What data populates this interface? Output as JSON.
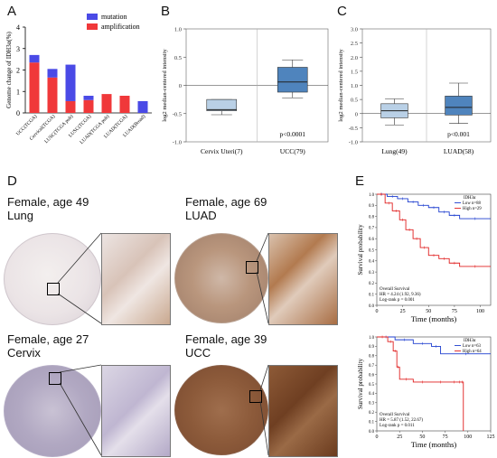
{
  "panels": {
    "a": "A",
    "b": "B",
    "c": "C",
    "d": "D",
    "e": "E"
  },
  "colors": {
    "mutation": "#4a4ae6",
    "amplification": "#f0383a",
    "box_light": "#b9d0e6",
    "box_dark": "#4f84bd",
    "low": "#1f3fcf",
    "high": "#e02020"
  },
  "chart_data": [
    {
      "type": "bar",
      "panel": "A",
      "ylabel": "Genome change of IDH3α(%)",
      "ylim": [
        0,
        4
      ],
      "yticks": [
        "0",
        "1",
        "2",
        "3",
        "4"
      ],
      "categories": [
        "UCC(TCGA)",
        "Cervical(TCGA)",
        "LUSC(TCGA pub)",
        "LUSC(TCGA)",
        "LUAD(TCGA pub)",
        "LUAD(TCGA)",
        "LUAD(Broad)"
      ],
      "series": [
        {
          "name": "amplification",
          "values": [
            2.35,
            1.65,
            0.55,
            0.6,
            0.88,
            0.8,
            0.0
          ]
        },
        {
          "name": "mutation",
          "values": [
            0.35,
            0.4,
            1.7,
            0.2,
            0.0,
            0.0,
            0.55
          ]
        }
      ],
      "legend": [
        "mutation",
        "amplification"
      ]
    },
    {
      "type": "box",
      "panel": "B",
      "ylabel": "log2 median-centered intensity",
      "ylim": [
        -1.0,
        1.0
      ],
      "yticks": [
        "-1.0",
        "-0.5",
        "0",
        "0.5",
        "1.0"
      ],
      "categories": [
        "Cervix Uteri(7)",
        "UCC(79)"
      ],
      "boxes": [
        {
          "whisker_low": -0.52,
          "q1": -0.45,
          "median": -0.43,
          "q3": -0.25,
          "whisker_high": -0.25
        },
        {
          "whisker_low": -0.22,
          "q1": -0.12,
          "median": 0.06,
          "q3": 0.32,
          "whisker_high": 0.45
        }
      ],
      "annotation": "p<0.0001"
    },
    {
      "type": "box",
      "panel": "C",
      "ylabel": "log2 median-centered intensity",
      "ylim": [
        -1.0,
        3.0
      ],
      "yticks": [
        "-1.0",
        "-0.5",
        "0",
        "0.5",
        "1.0",
        "1.5",
        "2.0",
        "2.5",
        "3.0"
      ],
      "categories": [
        "Lung(49)",
        "LUAD(58)"
      ],
      "boxes": [
        {
          "whisker_low": -0.4,
          "q1": -0.15,
          "median": 0.1,
          "q3": 0.35,
          "whisker_high": 0.52
        },
        {
          "whisker_low": -0.35,
          "q1": -0.05,
          "median": 0.22,
          "q3": 0.62,
          "whisker_high": 1.08
        }
      ],
      "annotation": "p<0.001"
    },
    {
      "type": "line",
      "panel": "E-top",
      "xlabel": "Time (months)",
      "ylabel": "Survival probability",
      "xlim": [
        0,
        110
      ],
      "xticks": [
        "0",
        "25",
        "50",
        "75",
        "100"
      ],
      "ylim": [
        0,
        1.0
      ],
      "yticks": [
        "0.0",
        "0.1",
        "0.2",
        "0.3",
        "0.4",
        "0.5",
        "0.6",
        "0.7",
        "0.8",
        "0.9",
        "1.0"
      ],
      "legend_title": "IDH3α",
      "series": [
        {
          "name": "Low n=88",
          "x": [
            0,
            10,
            20,
            30,
            40,
            50,
            60,
            70,
            80,
            110
          ],
          "y": [
            1.0,
            0.98,
            0.96,
            0.93,
            0.9,
            0.88,
            0.84,
            0.81,
            0.78,
            0.78
          ]
        },
        {
          "name": "High n=29",
          "x": [
            0,
            8,
            15,
            22,
            28,
            35,
            42,
            50,
            60,
            70,
            80,
            110
          ],
          "y": [
            1.0,
            0.92,
            0.85,
            0.77,
            0.68,
            0.6,
            0.52,
            0.45,
            0.42,
            0.38,
            0.35,
            0.35
          ]
        }
      ],
      "annotations": [
        "Overall Survival",
        "HR = 4.24 (1.92, 9.36)",
        "Log-rank p = 0.001"
      ]
    },
    {
      "type": "line",
      "panel": "E-bottom",
      "xlabel": "Time (months)",
      "ylabel": "Survival probability",
      "xlim": [
        0,
        125
      ],
      "xticks": [
        "0",
        "25",
        "50",
        "75",
        "100",
        "125"
      ],
      "ylim": [
        0,
        1.0
      ],
      "yticks": [
        "0.0",
        "0.1",
        "0.2",
        "0.3",
        "0.4",
        "0.5",
        "0.6",
        "0.7",
        "0.8",
        "0.9",
        "1.0"
      ],
      "legend_title": "IDH3α",
      "series": [
        {
          "name": "Low n=63",
          "x": [
            0,
            20,
            40,
            60,
            70,
            125
          ],
          "y": [
            1.0,
            0.97,
            0.93,
            0.9,
            0.82,
            0.82
          ]
        },
        {
          "name": "High n=64",
          "x": [
            0,
            12,
            18,
            22,
            25,
            40,
            60,
            80,
            90,
            92,
            95
          ],
          "y": [
            1.0,
            0.95,
            0.85,
            0.68,
            0.55,
            0.52,
            0.52,
            0.52,
            0.52,
            0.52,
            0.0
          ]
        }
      ],
      "annotations": [
        "Overall Survival",
        "HR = 5.87 (1.52, 22.67)",
        "Log-rank p = 0.011"
      ]
    }
  ],
  "ihc": [
    {
      "title": "Female, age 49",
      "tissue": "Lung"
    },
    {
      "title": "Female, age 69",
      "tissue": "LUAD"
    },
    {
      "title": "Female, age 27",
      "tissue": "Cervix"
    },
    {
      "title": "Female, age 39",
      "tissue": "UCC"
    }
  ]
}
